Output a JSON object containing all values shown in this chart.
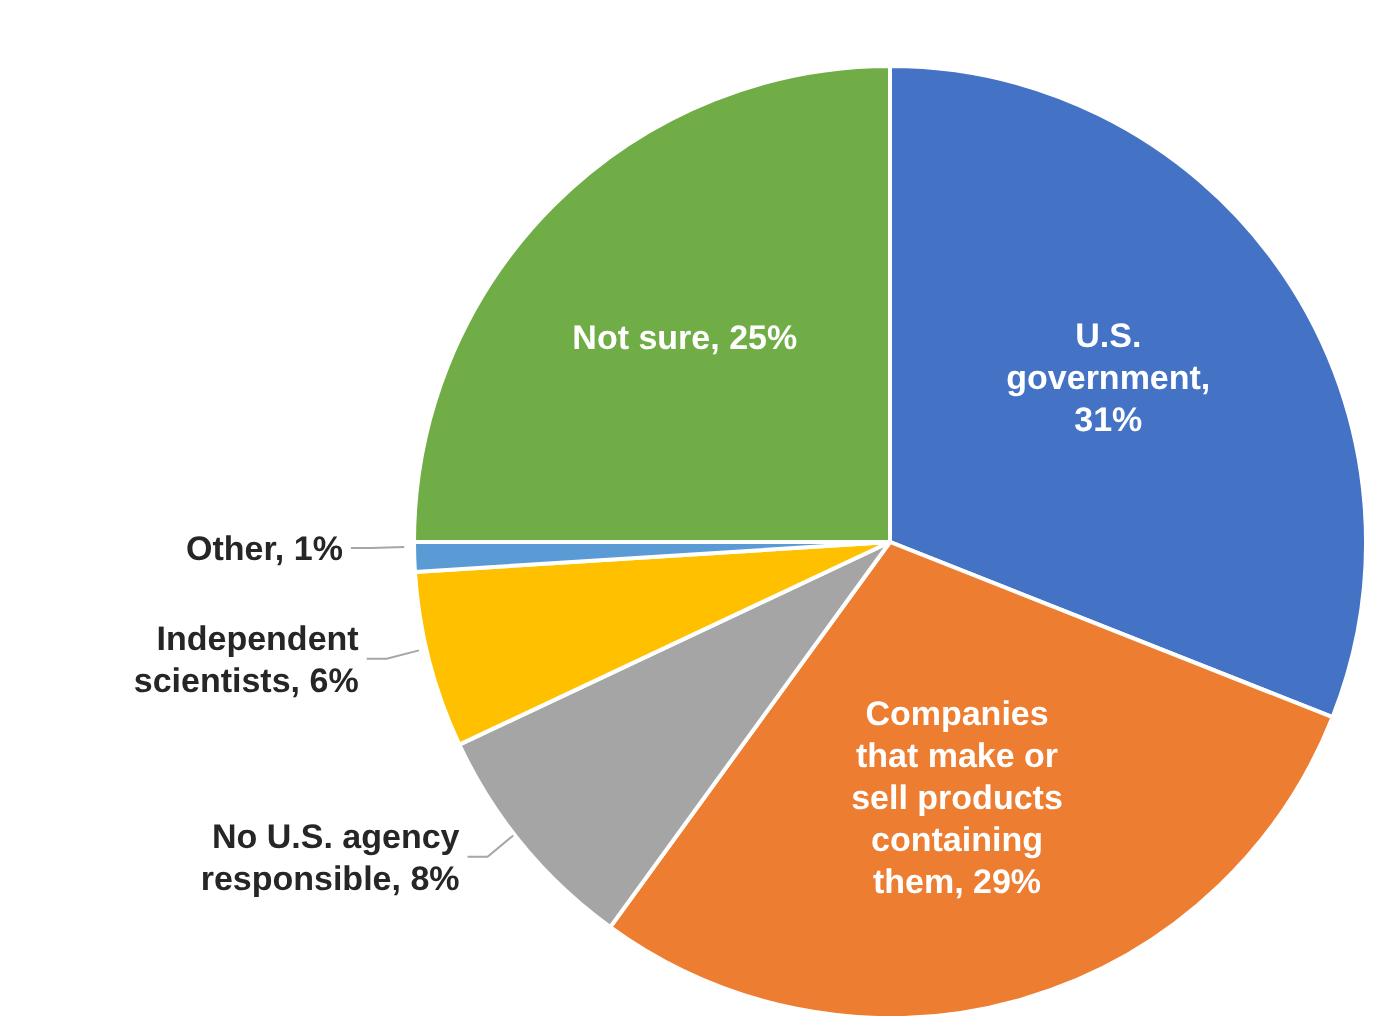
{
  "chart_data": {
    "type": "pie",
    "categories": [
      "U.S. government, 31%",
      "Companies that make or sell products containing them, 29%",
      "No U.S. agency responsible, 8%",
      "Independent scientists, 6%",
      "Other, 1%",
      "Not sure, 25%"
    ],
    "values": [
      31,
      29,
      8,
      6,
      1,
      25
    ],
    "colors": [
      "#4472c4",
      "#ed7d31",
      "#a5a5a5",
      "#ffc000",
      "#5b9bd5",
      "#70ad47"
    ]
  }
}
